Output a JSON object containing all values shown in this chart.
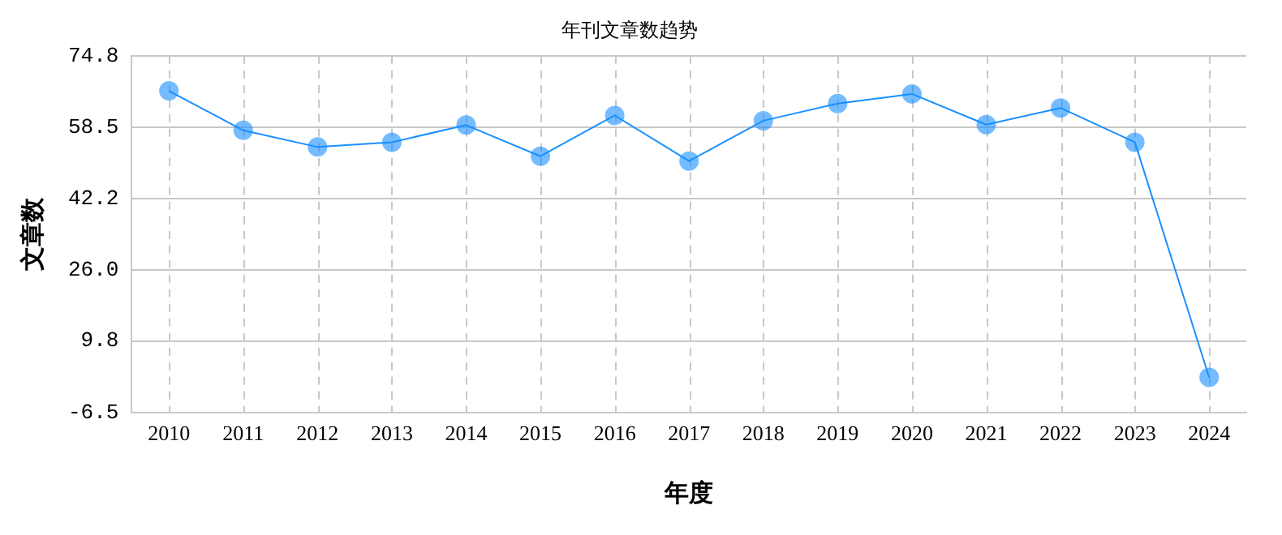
{
  "chart_data": {
    "type": "line",
    "title": "年刊文章数趋势",
    "xlabel": "年度",
    "ylabel": "文章数",
    "categories": [
      "2010",
      "2011",
      "2012",
      "2013",
      "2014",
      "2015",
      "2016",
      "2017",
      "2018",
      "2019",
      "2020",
      "2021",
      "2022",
      "2023",
      "2024"
    ],
    "series": [
      {
        "color": "#1890ff",
        "values": [
          66.8,
          57.8,
          54.0,
          55.1,
          59.0,
          51.9,
          61.2,
          50.8,
          60.0,
          63.9,
          66.1,
          59.1,
          62.9,
          55.1,
          1.5
        ]
      }
    ],
    "ylim": [
      -6.5,
      74.8
    ],
    "yticks": [
      -6.5,
      9.8,
      {
        "value": 26,
        "label": "26.0"
      },
      42.2,
      58.5,
      74.8
    ],
    "grid": true,
    "legend": false,
    "marker": "circle",
    "line_style": "solid"
  }
}
